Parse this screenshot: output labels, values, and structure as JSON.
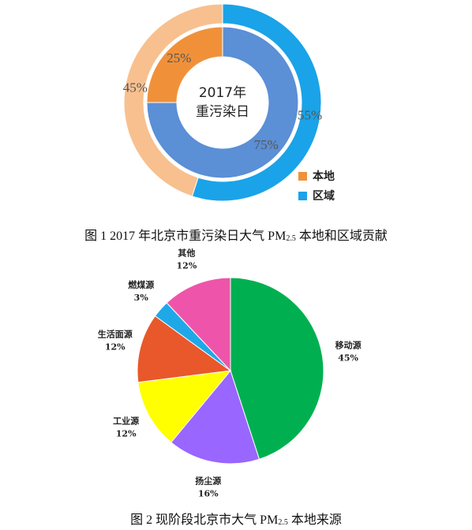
{
  "chart_data": [
    {
      "type": "doughnut",
      "center_text": [
        "2017年",
        "重污染日"
      ],
      "categories": [
        "本地",
        "区域"
      ],
      "legend_colors": [
        "#f0913a",
        "#1aa3e8"
      ],
      "rings": [
        {
          "values": [
            25,
            75
          ],
          "value_labels": [
            "25%",
            "75%"
          ],
          "colors": [
            "#f0913a",
            "#5b8fd6"
          ]
        },
        {
          "values": [
            45,
            55
          ],
          "value_labels": [
            "45%",
            "55%"
          ],
          "colors": [
            "#f8c08f",
            "#1aa3e8"
          ]
        }
      ],
      "caption": [
        "图 1 2017 年北京市重污染日大气 PM",
        "2.5",
        " 本地和区域贡献"
      ]
    },
    {
      "type": "pie",
      "categories": [
        "移动源",
        "扬尘源",
        "工业源",
        "生活面源",
        "燃煤源",
        "其他"
      ],
      "values": [
        45,
        16,
        12,
        12,
        3,
        12
      ],
      "value_labels": [
        "45%",
        "16%",
        "12%",
        "12%",
        "3%",
        "12%"
      ],
      "colors": [
        "#00b050",
        "#9966ff",
        "#ffff00",
        "#e8582a",
        "#1fa8e8",
        "#ee55aa"
      ],
      "caption": [
        "图 2  现阶段北京市大气 PM",
        "2.5",
        " 本地来源"
      ]
    }
  ]
}
